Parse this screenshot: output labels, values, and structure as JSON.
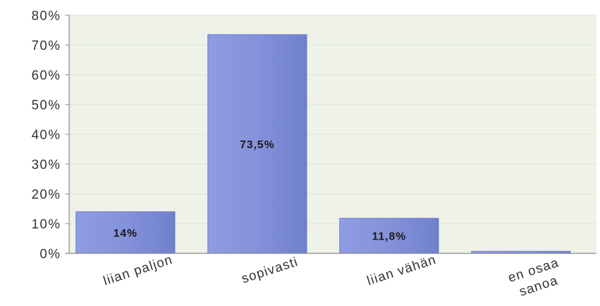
{
  "chart_data": {
    "type": "bar",
    "title": "",
    "xlabel": "",
    "ylabel": "",
    "ylim": [
      0,
      80
    ],
    "yticks": [
      0,
      10,
      20,
      30,
      40,
      50,
      60,
      70,
      80
    ],
    "ytick_suffix": "%",
    "grid": true,
    "legend": "none",
    "categories": [
      "liian paljon",
      "sopivasti",
      "liian vähän",
      "en osaa sanoa"
    ],
    "values": [
      14,
      73.5,
      11.8,
      0.7
    ],
    "data_labels": [
      "14%",
      "73,5%",
      "11,8%",
      ""
    ],
    "colors": {
      "bar": "#8896dc",
      "bar_edge": "#6f7fcf",
      "plot_background": "#eef2e8",
      "gridline": "#dde4d4",
      "axis": "#8a8a8a",
      "text": "#333333"
    }
  }
}
